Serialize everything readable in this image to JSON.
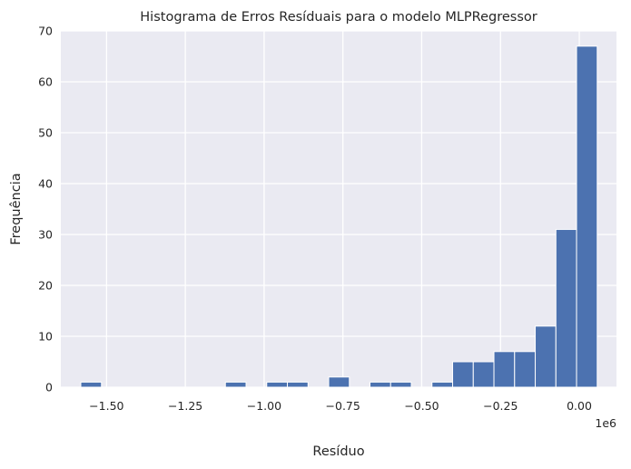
{
  "chart_data": {
    "type": "histogram",
    "title": "Histograma de Erros Resíduais para o modelo MLPRegressor",
    "xlabel": "Resíduo",
    "ylabel": "Frequência",
    "x_offset_text": "1e6",
    "x_scale": 1000000,
    "xlim": [
      -1.645,
      0.118
    ],
    "ylim": [
      0,
      70
    ],
    "x_ticks": [
      -1.5,
      -1.25,
      -1.0,
      -0.75,
      -0.5,
      -0.25,
      0.0
    ],
    "x_tick_labels": [
      "−1.50",
      "−1.25",
      "−1.00",
      "−0.75",
      "−0.50",
      "−0.25",
      "0.00"
    ],
    "y_ticks": [
      0,
      10,
      20,
      30,
      40,
      50,
      60,
      70
    ],
    "y_tick_labels": [
      "0",
      "10",
      "20",
      "30",
      "40",
      "50",
      "60",
      "70"
    ],
    "bin_start": -1.5816,
    "bin_width": 0.06554,
    "counts": [
      1,
      0,
      0,
      0,
      0,
      0,
      0,
      1,
      0,
      1,
      1,
      0,
      2,
      0,
      1,
      1,
      0,
      1,
      5,
      5,
      7,
      7,
      12,
      31,
      67
    ],
    "bar_color": "#4c72b0",
    "background_color": "#eaeaf2",
    "grid_color": "#ffffff",
    "grid": true
  }
}
